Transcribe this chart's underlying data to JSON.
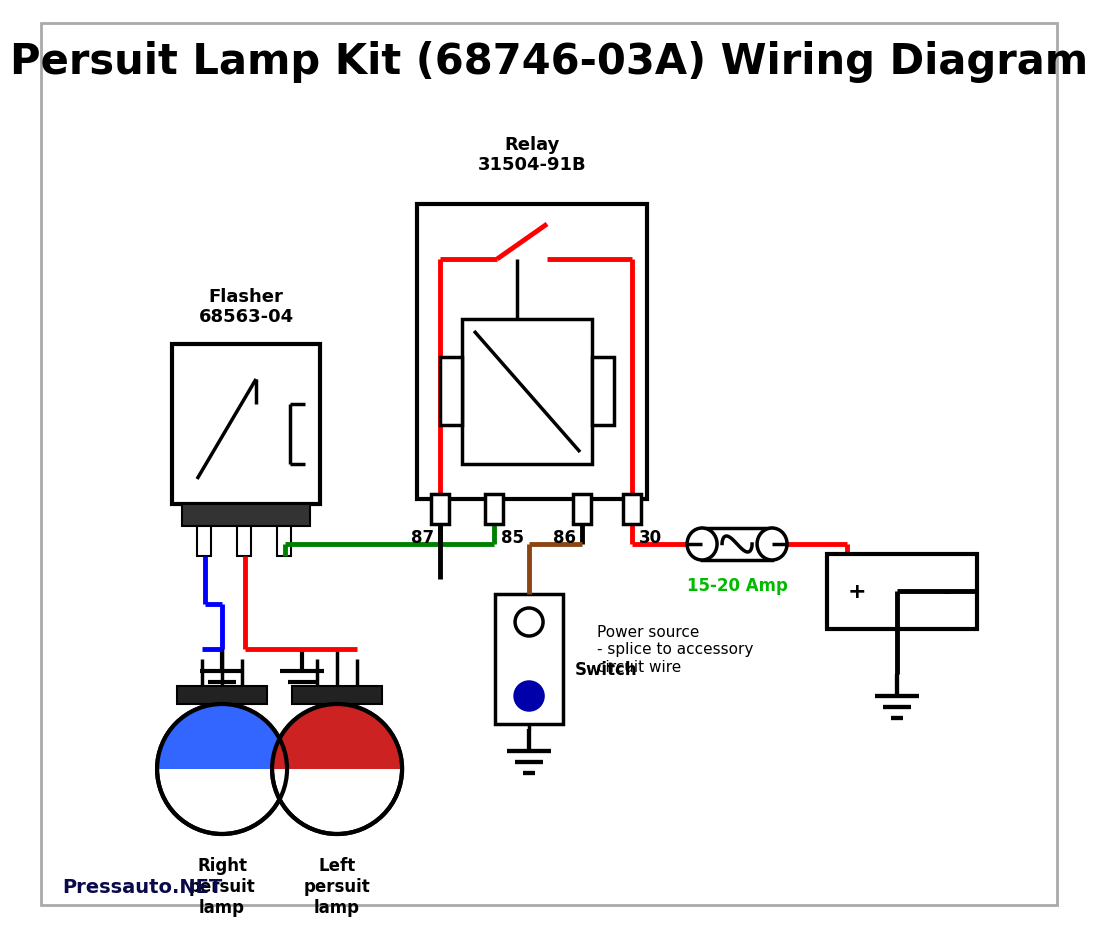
{
  "title": "Persuit Lamp Kit (68746-03A) Wiring Diagram",
  "title_fontsize": 30,
  "title_fontweight": "bold",
  "bg_color": "#ffffff",
  "watermark": "Pressauto.NET",
  "watermark_color": "#0a0a4a",
  "relay_label": "Relay\n31504-91B",
  "flasher_label": "Flasher\n68563-04",
  "switch_label": "Switch",
  "power_source_label": "Power source\n- splice to accessory\ncircuit wire",
  "amp_label": "15-20 Amp",
  "amp_color": "#00bb00",
  "right_lamp_label": "Right\npersuit\nlamp",
  "left_lamp_label": "Left\npersuit\nlamp",
  "pin_labels": [
    "87",
    "85",
    "86",
    "30"
  ],
  "border_color": "#aaaaaa"
}
